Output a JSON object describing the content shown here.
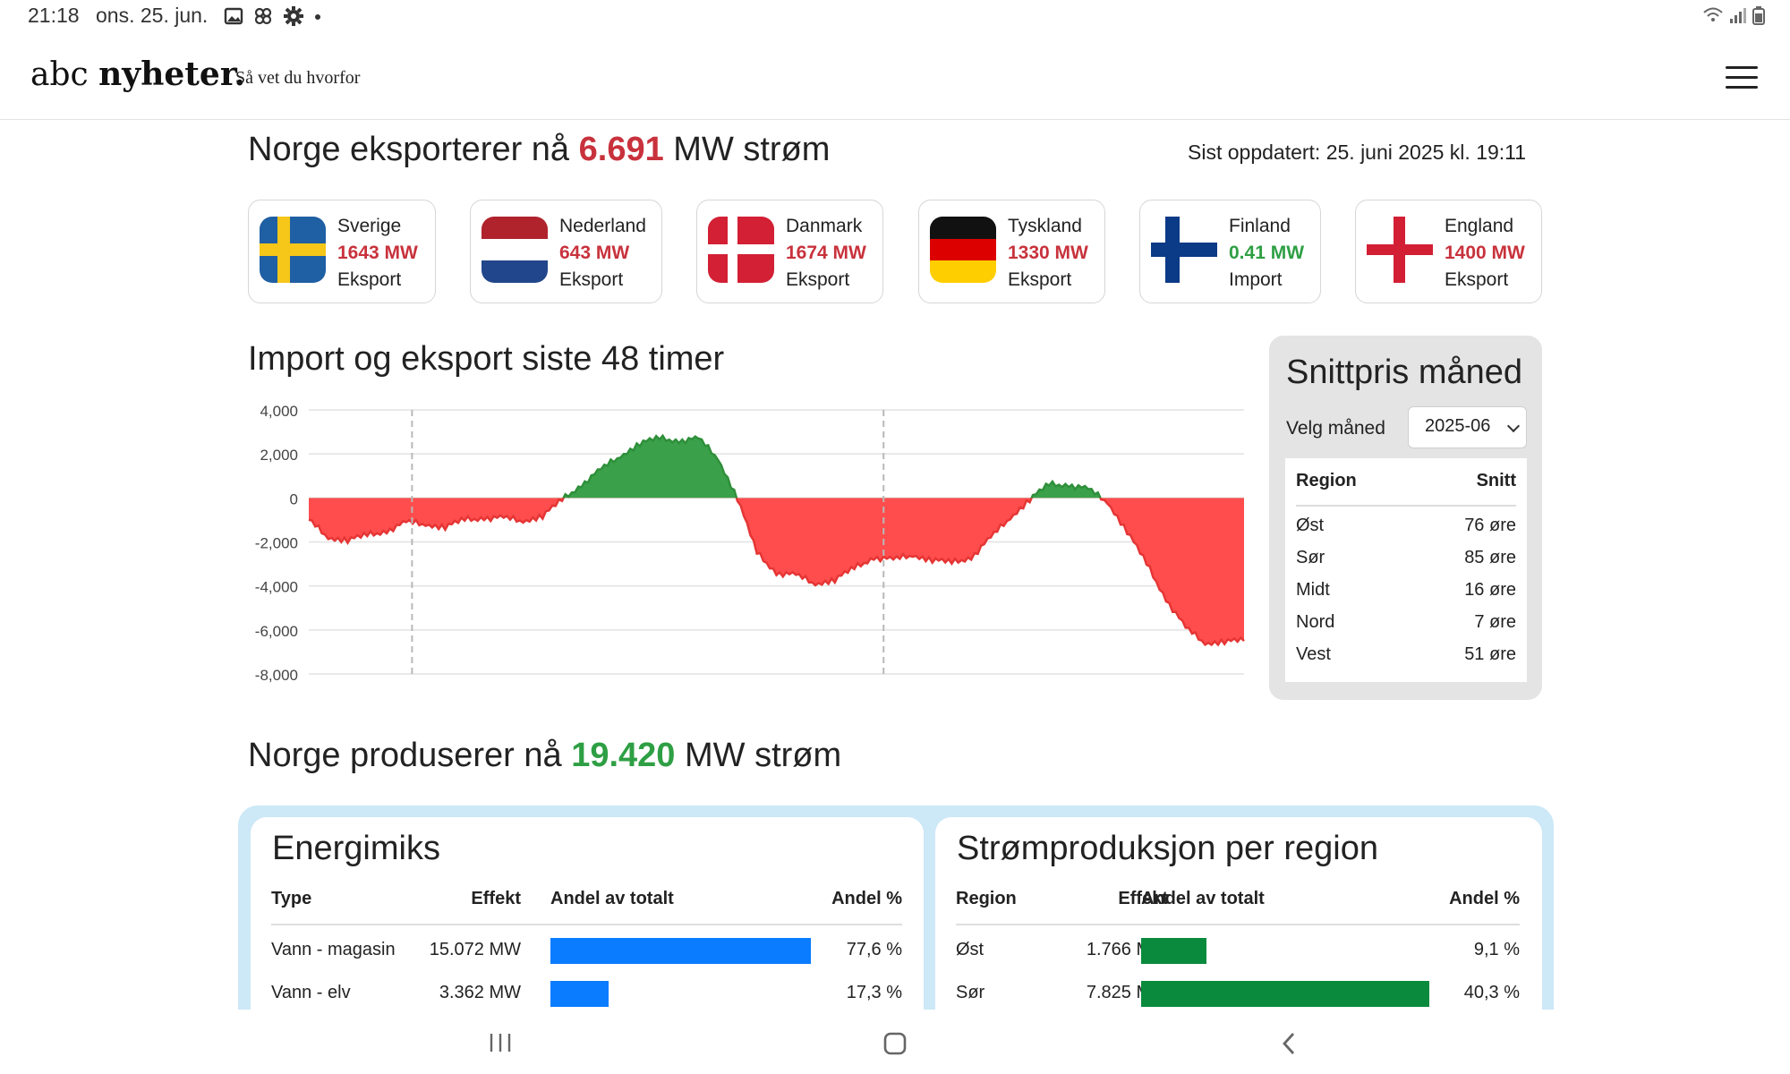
{
  "status_bar": {
    "time": "21:18",
    "date": "ons. 25. jun.",
    "icons": [
      "image-icon",
      "pinwheel-icon",
      "gear-icon",
      "dot-icon"
    ],
    "right_icons": [
      "wifi-icon",
      "signal-icon",
      "battery-icon"
    ]
  },
  "header": {
    "logo_light": "abc",
    "logo_bold": "nyheter.",
    "tagline": "Så vet du hvorfor",
    "menu_icon": "hamburger-icon"
  },
  "export": {
    "prefix": "Norge eksporterer nå",
    "value": "6.691",
    "suffix": "MW strøm",
    "updated": "Sist oppdatert: 25. juni 2025 kl. 19:11"
  },
  "countries": [
    {
      "name": "Sverige",
      "mw": "1643 MW",
      "direction": "Eksport",
      "flag": "sweden-flag",
      "status_color": "#c8323c"
    },
    {
      "name": "Nederland",
      "mw": "643 MW",
      "direction": "Eksport",
      "flag": "netherlands-flag",
      "status_color": "#c8323c"
    },
    {
      "name": "Danmark",
      "mw": "1674 MW",
      "direction": "Eksport",
      "flag": "denmark-flag",
      "status_color": "#c8323c"
    },
    {
      "name": "Tyskland",
      "mw": "1330 MW",
      "direction": "Eksport",
      "flag": "germany-flag",
      "status_color": "#c8323c"
    },
    {
      "name": "Finland",
      "mw": "0.41 MW",
      "direction": "Import",
      "flag": "finland-flag",
      "status_color": "#2e9f44"
    },
    {
      "name": "England",
      "mw": "1400 MW",
      "direction": "Eksport",
      "flag": "england-flag",
      "status_color": "#c8323c"
    }
  ],
  "chart_title": "Import og eksport siste 48 timer",
  "chart_data": {
    "type": "area",
    "title": "Import og eksport siste 48 timer",
    "xlabel": "",
    "ylabel": "",
    "ylim": [
      -8000,
      4000
    ],
    "yticks": [
      "4,000",
      "2,000",
      "0",
      "-2,000",
      "-4,000",
      "-6,000",
      "-8,000"
    ],
    "grid": true,
    "positive_color": "#3aa14a",
    "negative_color": "#ff4d4d",
    "day_dividers_x": [
      5.3,
      29.5
    ],
    "series": [
      {
        "x": [
          0,
          1,
          2,
          3,
          4,
          5,
          6,
          7,
          8,
          9,
          10,
          11,
          12,
          13,
          14,
          15,
          16,
          17,
          18,
          19,
          20,
          21,
          22,
          23,
          24,
          25,
          26,
          27,
          28,
          29,
          30,
          31,
          32,
          33,
          34,
          35,
          36,
          37,
          38,
          39,
          40,
          41,
          42,
          43,
          44,
          45,
          46,
          47,
          48
        ],
        "values": [
          -1000,
          -1800,
          -1900,
          -1700,
          -1500,
          -1100,
          -1200,
          -1300,
          -1000,
          -900,
          -900,
          -1050,
          -800,
          -100,
          600,
          1300,
          1900,
          2500,
          2700,
          2600,
          2700,
          1800,
          0,
          -2500,
          -3400,
          -3500,
          -3900,
          -3700,
          -3200,
          -2700,
          -2800,
          -2600,
          -2800,
          -2950,
          -2700,
          -1800,
          -900,
          -50,
          600,
          600,
          400,
          -200,
          -1500,
          -3000,
          -4600,
          -5900,
          -6600,
          -6500,
          -6500
        ]
      }
    ]
  },
  "price_box": {
    "title": "Snittpris måned",
    "select_label": "Velg måned",
    "select_value": "2025-06",
    "col_region": "Region",
    "col_avg": "Snitt",
    "rows": [
      {
        "region": "Øst",
        "price": "76 øre"
      },
      {
        "region": "Sør",
        "price": "85 øre"
      },
      {
        "region": "Midt",
        "price": "16 øre"
      },
      {
        "region": "Nord",
        "price": "7 øre"
      },
      {
        "region": "Vest",
        "price": "51 øre"
      }
    ]
  },
  "production": {
    "prefix": "Norge produserer nå",
    "value": "19.420",
    "suffix": "MW strøm"
  },
  "energy_mix": {
    "title": "Energimiks",
    "headers": [
      "Type",
      "Effekt",
      "Andel av totalt",
      "Andel %"
    ],
    "bar_color": "#0a7cff",
    "rows": [
      {
        "type": "Vann - magasin",
        "effect": "15.072 MW",
        "share": 77.6,
        "share_label": "77,6 %"
      },
      {
        "type": "Vann - elv",
        "effect": "3.362 MW",
        "share": 17.3,
        "share_label": "17,3 %"
      }
    ]
  },
  "region_production": {
    "title": "Strømproduksjon per region",
    "headers": [
      "Region",
      "Effekt",
      "Andel av totalt",
      "Andel %"
    ],
    "bar_color": "#0a8a3c",
    "rows": [
      {
        "region": "Øst",
        "effect": "1.766 MW",
        "share": 9.1,
        "share_label": "9,1 %"
      },
      {
        "region": "Sør",
        "effect": "7.825 MW",
        "share": 40.3,
        "share_label": "40,3 %"
      }
    ]
  },
  "navbar": {
    "icons": [
      "recent-apps-icon",
      "home-icon",
      "back-icon"
    ]
  }
}
